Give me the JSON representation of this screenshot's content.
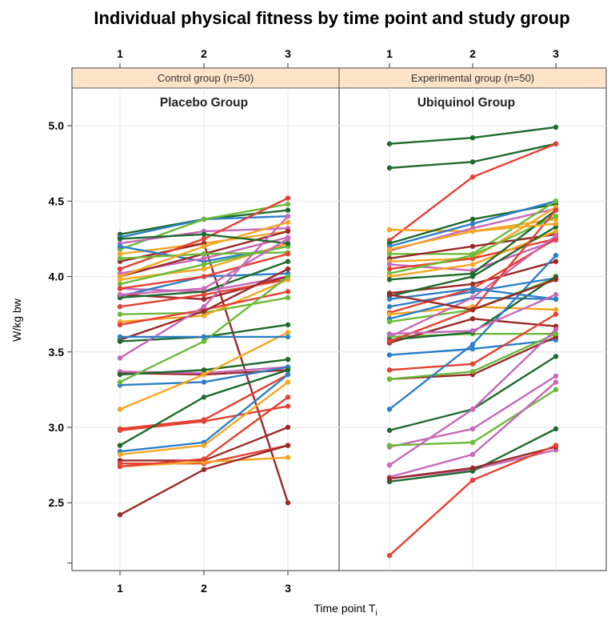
{
  "chart_data": {
    "type": "line",
    "title": "Individual physical fitness by time point and study group",
    "xlabel": "Time point T",
    "xlabel_sub": "i",
    "ylabel": "W/kg bw",
    "x": [
      1,
      2,
      3
    ],
    "ylim": [
      2.05,
      5.25
    ],
    "yticks": [
      2.5,
      3.0,
      3.5,
      4.0,
      4.5,
      5.0
    ],
    "ytick_labels": [
      "2.5",
      "3.0",
      "3.5",
      "4.0",
      "4.5",
      "5.0"
    ],
    "xtick_labels": [
      "1",
      "2",
      "3"
    ],
    "grid": true,
    "strip_color": "#fde3c8",
    "panels": [
      {
        "strip": "Control group (n=50)",
        "subtitle": "Placebo Group",
        "series": [
          {
            "color": "#1f6b2e",
            "values": [
              4.28,
              4.38,
              4.44
            ]
          },
          {
            "color": "#2e7fc6",
            "values": [
              4.26,
              4.38,
              4.4
            ]
          },
          {
            "color": "#6cba3a",
            "values": [
              4.18,
              4.38,
              4.48
            ]
          },
          {
            "color": "#c768b8",
            "values": [
              4.22,
              4.3,
              4.32
            ]
          },
          {
            "color": "#f5a623",
            "values": [
              4.15,
              4.22,
              4.3
            ]
          },
          {
            "color": "#9a2a2a",
            "values": [
              4.1,
              4.22,
              2.5
            ]
          },
          {
            "color": "#e64032",
            "values": [
              4.05,
              4.25,
              4.52
            ]
          },
          {
            "color": "#2e7fc6",
            "values": [
              4.2,
              4.1,
              4.2
            ]
          },
          {
            "color": "#c768b8",
            "values": [
              4.02,
              4.12,
              4.26
            ]
          },
          {
            "color": "#9a2a2a",
            "values": [
              4.0,
              4.15,
              4.3
            ]
          },
          {
            "color": "#f5a623",
            "values": [
              3.98,
              4.05,
              4.22
            ]
          },
          {
            "color": "#6cba3a",
            "values": [
              3.95,
              4.08,
              4.2
            ]
          },
          {
            "color": "#c768b8",
            "values": [
              3.92,
              3.9,
              4.0
            ]
          },
          {
            "color": "#9a2a2a",
            "values": [
              3.88,
              3.85,
              4.0
            ]
          },
          {
            "color": "#2e7fc6",
            "values": [
              3.87,
              4.0,
              4.02
            ]
          },
          {
            "color": "#1f6b2e",
            "values": [
              3.86,
              3.9,
              4.1
            ]
          },
          {
            "color": "#e64032",
            "values": [
              3.8,
              3.88,
              3.98
            ]
          },
          {
            "color": "#6cba3a",
            "values": [
              3.75,
              3.76,
              3.86
            ]
          },
          {
            "color": "#f5a623",
            "values": [
              3.7,
              3.74,
              3.98
            ]
          },
          {
            "color": "#e64032",
            "values": [
              3.68,
              3.78,
              3.9
            ]
          },
          {
            "color": "#9a2a2a",
            "values": [
              3.58,
              3.77,
              4.05
            ]
          },
          {
            "color": "#1f6b2e",
            "values": [
              3.57,
              3.6,
              3.68
            ]
          },
          {
            "color": "#c768b8",
            "values": [
              3.46,
              3.8,
              4.4
            ]
          },
          {
            "color": "#9a2a2a",
            "values": [
              3.36,
              3.35,
              3.38
            ]
          },
          {
            "color": "#c768b8",
            "values": [
              3.37,
              3.36,
              3.4
            ]
          },
          {
            "color": "#1f6b2e",
            "values": [
              3.35,
              3.38,
              3.45
            ]
          },
          {
            "color": "#2e7fc6",
            "values": [
              3.28,
              3.3,
              3.4
            ]
          },
          {
            "color": "#6cba3a",
            "values": [
              3.3,
              3.57,
              4.0
            ]
          },
          {
            "color": "#f5a623",
            "values": [
              3.12,
              3.35,
              3.63
            ]
          },
          {
            "color": "#e64032",
            "values": [
              2.99,
              3.05,
              3.35
            ]
          },
          {
            "color": "#e64032",
            "values": [
              2.98,
              3.04,
              3.14
            ]
          },
          {
            "color": "#1f6b2e",
            "values": [
              2.88,
              3.2,
              3.38
            ]
          },
          {
            "color": "#2e7fc6",
            "values": [
              2.84,
              2.9,
              3.35
            ]
          },
          {
            "color": "#f5a623",
            "values": [
              2.82,
              2.88,
              3.3
            ]
          },
          {
            "color": "#9a2a2a",
            "values": [
              2.78,
              2.78,
              3.0
            ]
          },
          {
            "color": "#e64032",
            "values": [
              2.76,
              2.76,
              2.88
            ]
          },
          {
            "color": "#f5a623",
            "values": [
              2.74,
              2.77,
              2.8
            ]
          },
          {
            "color": "#e64032",
            "values": [
              2.74,
              2.79,
              3.2
            ]
          },
          {
            "color": "#9a2a2a",
            "values": [
              2.42,
              2.72,
              2.88
            ]
          },
          {
            "color": "#2e7fc6",
            "values": [
              3.6,
              3.6,
              3.6
            ]
          },
          {
            "color": "#6cba3a",
            "values": [
              4.12,
              4.15,
              4.16
            ]
          },
          {
            "color": "#f5a623",
            "values": [
              4.0,
              4.2,
              4.36
            ]
          },
          {
            "color": "#1f6b2e",
            "values": [
              4.25,
              4.28,
              4.22
            ]
          },
          {
            "color": "#e64032",
            "values": [
              3.92,
              4.0,
              4.15
            ]
          },
          {
            "color": "#c768b8",
            "values": [
              3.88,
              3.92,
              4.25
            ]
          }
        ]
      },
      {
        "strip": "Experimental group (n=50)",
        "subtitle": "Ubiquinol Group",
        "series": [
          {
            "color": "#1f6b2e",
            "values": [
              4.88,
              4.92,
              4.99
            ]
          },
          {
            "color": "#1f6b2e",
            "values": [
              4.72,
              4.76,
              4.88
            ]
          },
          {
            "color": "#e64032",
            "values": [
              4.24,
              4.66,
              4.88
            ]
          },
          {
            "color": "#f5a623",
            "values": [
              4.31,
              4.3,
              4.38
            ]
          },
          {
            "color": "#1f6b2e",
            "values": [
              4.22,
              4.38,
              4.48
            ]
          },
          {
            "color": "#c768b8",
            "values": [
              4.17,
              4.32,
              4.45
            ]
          },
          {
            "color": "#2e7fc6",
            "values": [
              4.2,
              4.35,
              4.5
            ]
          },
          {
            "color": "#6cba3a",
            "values": [
              4.15,
              4.15,
              4.5
            ]
          },
          {
            "color": "#9a2a2a",
            "values": [
              4.12,
              4.2,
              4.28
            ]
          },
          {
            "color": "#f5a623",
            "values": [
              4.1,
              4.12,
              4.46
            ]
          },
          {
            "color": "#c768b8",
            "values": [
              4.08,
              4.04,
              4.24
            ]
          },
          {
            "color": "#e64032",
            "values": [
              4.05,
              4.12,
              4.25
            ]
          },
          {
            "color": "#6cba3a",
            "values": [
              4.02,
              4.14,
              4.4
            ]
          },
          {
            "color": "#f5a623",
            "values": [
              4.0,
              4.08,
              4.3
            ]
          },
          {
            "color": "#1f6b2e",
            "values": [
              3.98,
              4.02,
              4.44
            ]
          },
          {
            "color": "#9a2a2a",
            "values": [
              3.89,
              3.95,
              4.1
            ]
          },
          {
            "color": "#1f6b2e",
            "values": [
              3.87,
              4.0,
              4.33
            ]
          },
          {
            "color": "#2e7fc6",
            "values": [
              3.8,
              3.9,
              3.99
            ]
          },
          {
            "color": "#e64032",
            "values": [
              3.76,
              3.92,
              4.25
            ]
          },
          {
            "color": "#f5a623",
            "values": [
              3.75,
              3.8,
              3.78
            ]
          },
          {
            "color": "#2e7fc6",
            "values": [
              3.72,
              3.86,
              3.85
            ]
          },
          {
            "color": "#6cba3a",
            "values": [
              3.7,
              3.78,
              3.99
            ]
          },
          {
            "color": "#c768b8",
            "values": [
              3.6,
              3.86,
              4.27
            ]
          },
          {
            "color": "#6cba3a",
            "values": [
              3.6,
              3.62,
              3.62
            ]
          },
          {
            "color": "#9a2a2a",
            "values": [
              3.56,
              3.72,
              3.67
            ]
          },
          {
            "color": "#1f6b2e",
            "values": [
              3.58,
              3.63,
              4.0
            ]
          },
          {
            "color": "#e64032",
            "values": [
              3.57,
              3.78,
              4.44
            ]
          },
          {
            "color": "#2e7fc6",
            "values": [
              3.48,
              3.52,
              3.58
            ]
          },
          {
            "color": "#e64032",
            "values": [
              3.38,
              3.42,
              3.75
            ]
          },
          {
            "color": "#9a2a2a",
            "values": [
              3.32,
              3.35,
              3.6
            ]
          },
          {
            "color": "#6cba3a",
            "values": [
              3.32,
              3.37,
              3.62
            ]
          },
          {
            "color": "#2e7fc6",
            "values": [
              3.12,
              3.55,
              4.14
            ]
          },
          {
            "color": "#1f6b2e",
            "values": [
              2.98,
              3.12,
              3.47
            ]
          },
          {
            "color": "#c768b8",
            "values": [
              2.87,
              2.99,
              3.34
            ]
          },
          {
            "color": "#6cba3a",
            "values": [
              2.88,
              2.9,
              3.25
            ]
          },
          {
            "color": "#c768b8",
            "values": [
              2.75,
              3.12,
              3.65
            ]
          },
          {
            "color": "#c768b8",
            "values": [
              2.67,
              2.82,
              3.3
            ]
          },
          {
            "color": "#c768b8",
            "values": [
              2.66,
              2.72,
              2.85
            ]
          },
          {
            "color": "#1f6b2e",
            "values": [
              2.64,
              2.71,
              2.99
            ]
          },
          {
            "color": "#9a2a2a",
            "values": [
              2.66,
              2.73,
              2.87
            ]
          },
          {
            "color": "#e64032",
            "values": [
              2.15,
              2.65,
              2.88
            ]
          },
          {
            "color": "#2e7fc6",
            "values": [
              3.85,
              3.92,
              3.85
            ]
          },
          {
            "color": "#9a2a2a",
            "values": [
              3.88,
              3.78,
              3.98
            ]
          },
          {
            "color": "#c768b8",
            "values": [
              3.62,
              3.64,
              3.88
            ]
          },
          {
            "color": "#f5a623",
            "values": [
              4.18,
              4.3,
              4.35
            ]
          }
        ]
      }
    ]
  }
}
